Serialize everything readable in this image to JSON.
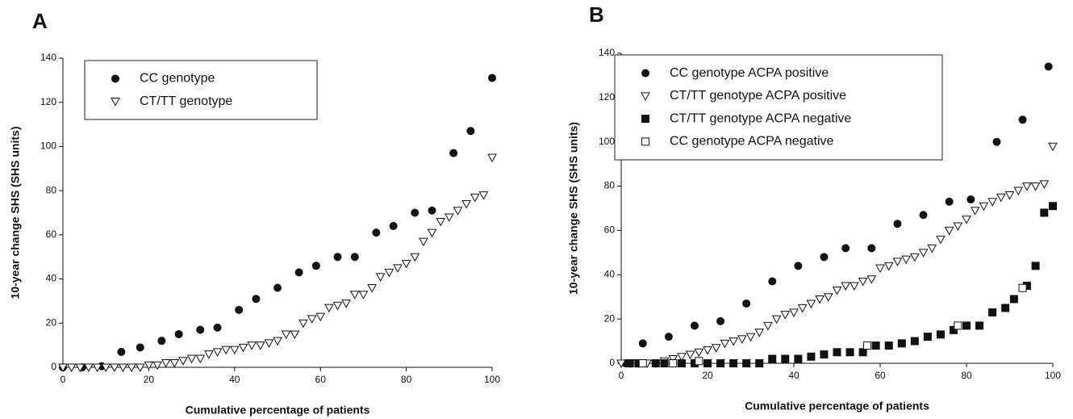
{
  "chart_data": [
    {
      "type": "scatter",
      "title": "A",
      "xlabel": "Cumulative percentage of patients",
      "ylabel": "10-year change SHS (SHS units)",
      "xlim": [
        0,
        100
      ],
      "xticks": [
        0,
        20,
        40,
        60,
        80,
        100
      ],
      "ylim": [
        0,
        140
      ],
      "yticks": [
        0,
        20,
        40,
        60,
        80,
        100,
        120,
        140
      ],
      "legend": "upper left",
      "series": [
        {
          "name": "CC genotype",
          "color": "#111111",
          "marker": "circle",
          "x": [
            0,
            4.5,
            9,
            13.6,
            18,
            23,
            27,
            32,
            36,
            41,
            45,
            50,
            55,
            59,
            64,
            68,
            73,
            77,
            82,
            86,
            91,
            95,
            100
          ],
          "values": [
            0,
            0,
            0.5,
            7,
            9,
            12,
            15,
            17,
            18,
            26,
            31,
            36,
            43,
            46,
            50,
            50,
            61,
            64,
            70,
            71,
            97,
            107,
            131
          ]
        },
        {
          "name": "CT/TT genotype",
          "color": "#111111",
          "marker": "triangle-open",
          "x": [
            0,
            2,
            4,
            6,
            8,
            10,
            12,
            14,
            16,
            18,
            20,
            22,
            24,
            26,
            28,
            30,
            32,
            34,
            36,
            38,
            40,
            42,
            44,
            46,
            48,
            50,
            52,
            54,
            56,
            58,
            60,
            62,
            64,
            66,
            68,
            70,
            72,
            74,
            76,
            78,
            80,
            82,
            84,
            86,
            88,
            90,
            92,
            94,
            96,
            98,
            100
          ],
          "values": [
            0,
            0,
            0,
            0,
            0,
            0,
            0,
            0,
            0,
            0,
            1,
            1,
            2,
            2,
            3,
            4,
            4,
            6,
            7,
            8,
            8,
            9,
            10,
            10,
            11,
            12,
            15,
            15,
            20,
            22,
            23,
            27,
            28,
            29,
            33,
            33,
            36,
            41,
            43,
            45,
            47,
            50,
            57,
            61,
            66,
            68,
            71,
            74,
            77,
            78,
            95
          ]
        }
      ]
    },
    {
      "type": "scatter",
      "title": "B",
      "xlabel": "Cumulative percentage of patients",
      "ylabel": "10-year change SHS (SHS units)",
      "xlim": [
        0,
        100
      ],
      "xticks": [
        0,
        20,
        40,
        60,
        80,
        100
      ],
      "ylim": [
        0,
        140
      ],
      "yticks": [
        0,
        20,
        40,
        60,
        80,
        100,
        120,
        140
      ],
      "legend": "upper left",
      "series": [
        {
          "name": "CC genotype ACPA positive",
          "color": "#111111",
          "marker": "circle",
          "x": [
            1,
            5,
            11,
            17,
            23,
            29,
            35,
            41,
            47,
            52,
            58,
            64,
            70,
            76,
            81,
            87,
            93,
            99
          ],
          "values": [
            0,
            9,
            12,
            17,
            19,
            27,
            37,
            44,
            48,
            52,
            52,
            63,
            67,
            73,
            74,
            100,
            110,
            134
          ]
        },
        {
          "name": "CT/TT genotype ACPA positive",
          "color": "#111111",
          "marker": "triangle-open",
          "x": [
            0,
            2,
            4,
            6,
            8,
            10,
            12,
            14,
            16,
            18,
            20,
            22,
            24,
            26,
            28,
            30,
            32,
            34,
            36,
            38,
            40,
            42,
            44,
            46,
            48,
            50,
            52,
            54,
            56,
            58,
            60,
            62,
            64,
            66,
            68,
            70,
            72,
            74,
            76,
            78,
            80,
            82,
            84,
            86,
            88,
            90,
            92,
            94,
            96,
            98,
            100
          ],
          "values": [
            0,
            0,
            0,
            0,
            0,
            1,
            2,
            3,
            4,
            5,
            6,
            7,
            9,
            10,
            11,
            12,
            14,
            17,
            20,
            22,
            23,
            25,
            27,
            29,
            30,
            33,
            35,
            35,
            37,
            38,
            43,
            44,
            46,
            47,
            48,
            50,
            52,
            56,
            60,
            62,
            65,
            69,
            71,
            73,
            75,
            76,
            78,
            80,
            80,
            81,
            98
          ]
        },
        {
          "name": "CT/TT genotype ACPA negative",
          "color": "#111111",
          "marker": "square",
          "x": [
            2,
            4,
            8,
            10,
            14,
            17,
            20,
            23,
            26,
            29,
            32,
            35,
            38,
            41,
            44,
            47,
            50,
            53,
            56,
            59,
            62,
            65,
            68,
            71,
            74,
            77,
            80,
            83,
            86,
            89,
            91,
            94,
            96,
            98,
            100
          ],
          "values": [
            0,
            0,
            0,
            0,
            0,
            0,
            0,
            0,
            0,
            0,
            0,
            2,
            2,
            2,
            3,
            4,
            5,
            5,
            5,
            8,
            8,
            9,
            10,
            12,
            13,
            15,
            17,
            17,
            23,
            25,
            29,
            35,
            44,
            68,
            71
          ]
        },
        {
          "name": "CC genotype ACPA negative",
          "color": "#111111",
          "marker": "square-open",
          "x": [
            5,
            12,
            18,
            57,
            78,
            93
          ],
          "values": [
            0,
            0,
            1,
            8,
            17,
            34
          ]
        }
      ]
    }
  ]
}
